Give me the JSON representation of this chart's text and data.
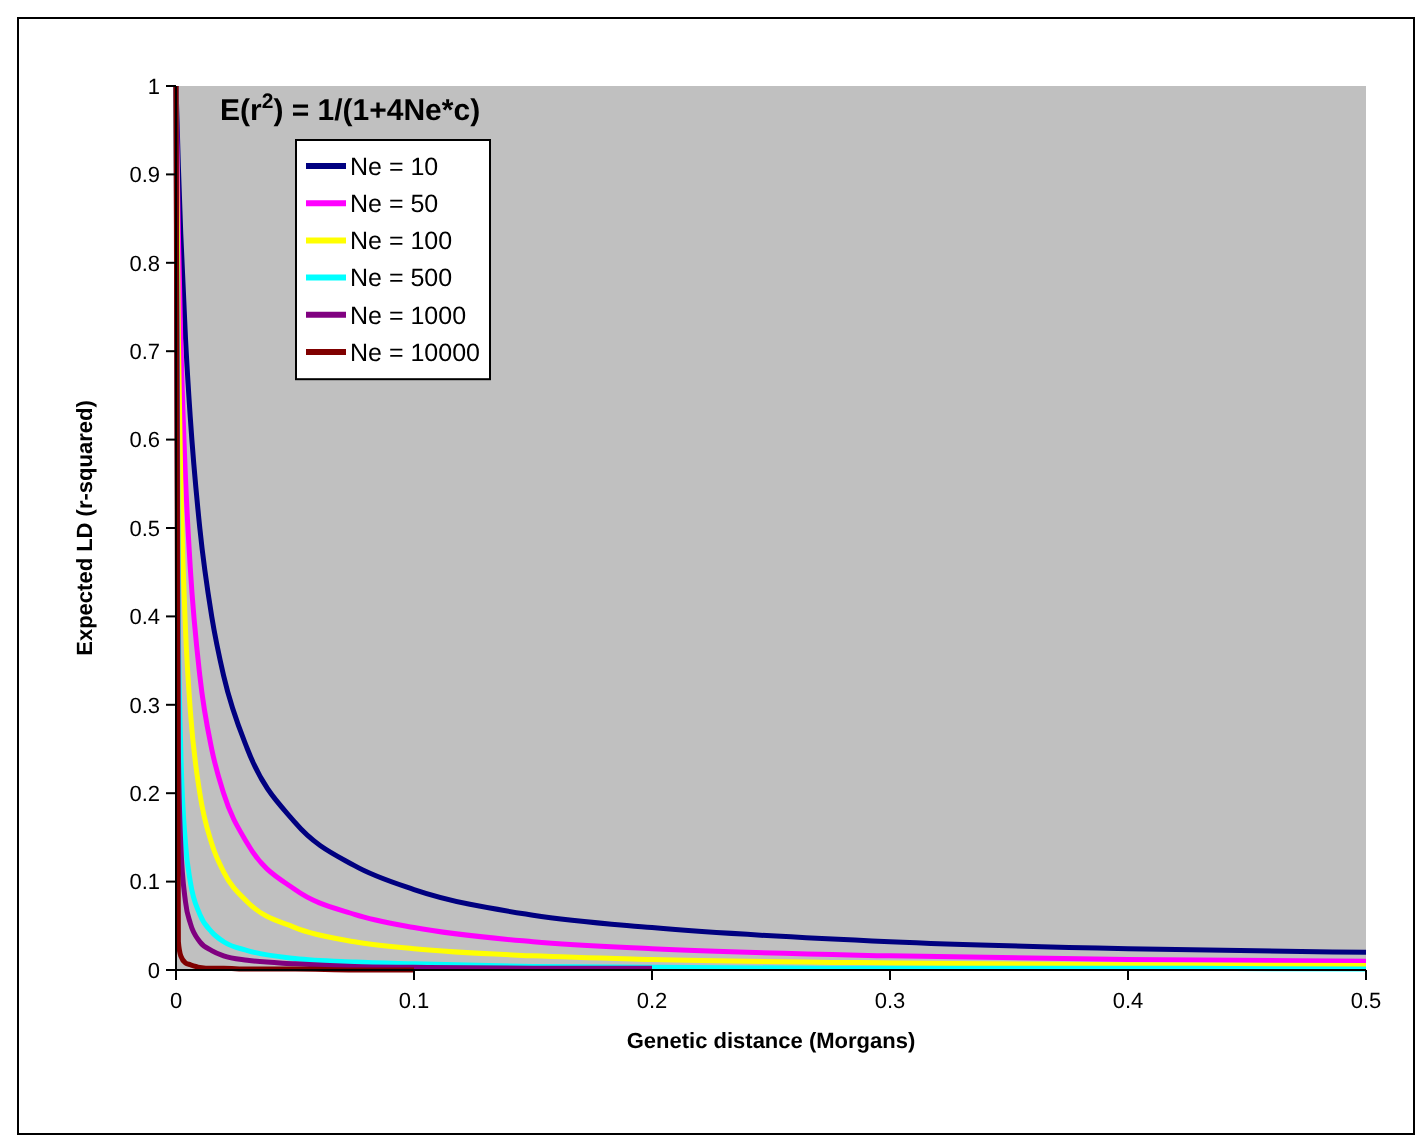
{
  "chart_data": {
    "type": "line",
    "title": "E(r$^{2}$) = 1/(1+4Ne*c)",
    "xlabel": "Genetic distance (Morgans)",
    "ylabel": "Expected LD (r-squared)",
    "x": [
      0,
      0.001,
      0.002,
      0.004,
      0.006,
      0.01,
      0.015,
      0.02,
      0.03,
      0.05,
      0.075,
      0.1,
      0.15,
      0.2,
      0.3,
      0.4,
      0.5
    ],
    "series": [
      {
        "name": "Ne = 10",
        "color": "#000080",
        "values": [
          1,
          0.909,
          0.833,
          0.714,
          0.625,
          0.5,
          0.4,
          0.333,
          0.25,
          0.167,
          0.118,
          0.091,
          0.062,
          0.048,
          0.032,
          0.024,
          0.02
        ]
      },
      {
        "name": "Ne = 50",
        "color": "#ff00ff",
        "values": [
          1,
          0.833,
          0.714,
          0.556,
          0.455,
          0.333,
          0.25,
          0.2,
          0.143,
          0.091,
          0.063,
          0.048,
          0.032,
          0.024,
          0.016,
          0.012,
          0.01
        ]
      },
      {
        "name": "Ne = 100",
        "color": "#ffff00",
        "values": [
          1,
          0.714,
          0.556,
          0.385,
          0.294,
          0.2,
          0.143,
          0.111,
          0.077,
          0.048,
          0.032,
          0.024,
          0.016,
          0.012,
          0.008,
          0.006,
          0.005
        ]
      },
      {
        "name": "Ne = 500",
        "color": "#00ffff",
        "values": [
          1,
          0.4,
          0.25,
          0.143,
          0.1,
          0.063,
          0.043,
          0.032,
          0.022,
          0.013,
          0.009,
          0.007,
          0.004,
          0.003,
          0.002,
          0.002,
          0.001
        ]
      },
      {
        "name": "Ne = 1000",
        "color": "#800080",
        "values": [
          1,
          0.25,
          0.143,
          0.077,
          0.053,
          0.032,
          0.022,
          0.016,
          0.011,
          0.007,
          0.004,
          0.003,
          0.002,
          0.002,
          null,
          null,
          null
        ]
      },
      {
        "name": "Ne = 10000",
        "color": "#800000",
        "values": [
          1,
          0.032,
          0.016,
          0.008,
          0.006,
          0.003,
          0.002,
          0.002,
          0.001,
          0.001,
          0,
          0,
          null,
          null,
          null,
          null,
          null
        ]
      }
    ],
    "xlim": [
      0,
      0.5
    ],
    "xticks": [
      0,
      0.1,
      0.2,
      0.3,
      0.4,
      0.5
    ],
    "ylim": [
      0,
      1
    ],
    "yticks": [
      0,
      0.1,
      0.2,
      0.3,
      0.4,
      0.5,
      0.6,
      0.7,
      0.8,
      0.9,
      1
    ],
    "grid": false,
    "legend": "top left",
    "marker": "none",
    "line_style": "solid"
  }
}
